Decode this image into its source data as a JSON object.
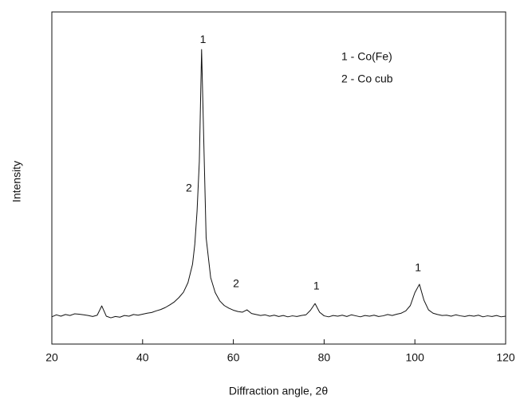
{
  "chart_data": {
    "type": "line",
    "xlabel": "Diffraction angle, 2θ",
    "ylabel": "Intensity",
    "x": [
      20,
      21,
      22,
      23,
      24,
      25,
      26,
      27,
      28,
      29,
      30,
      31,
      32,
      33,
      34,
      35,
      36,
      37,
      38,
      39,
      40,
      41,
      42,
      43,
      44,
      45,
      46,
      47,
      48,
      49,
      50,
      51,
      51.5,
      52,
      52.5,
      53,
      53.5,
      54,
      55,
      56,
      57,
      58,
      59,
      60,
      61,
      62,
      63,
      64,
      65,
      66,
      67,
      68,
      69,
      70,
      71,
      72,
      73,
      74,
      75,
      76,
      77,
      78,
      79,
      80,
      81,
      82,
      83,
      84,
      85,
      86,
      87,
      88,
      89,
      90,
      91,
      92,
      93,
      94,
      95,
      96,
      97,
      98,
      99,
      100,
      101,
      102,
      103,
      104,
      105,
      106,
      107,
      108,
      109,
      110,
      111,
      112,
      113,
      114,
      115,
      116,
      117,
      118,
      119,
      120
    ],
    "series": [
      {
        "color": "#111111",
        "values": [
          8.2,
          8.8,
          8.4,
          8.9,
          8.6,
          9.1,
          9.0,
          8.8,
          8.6,
          8.3,
          8.7,
          11.5,
          8.4,
          7.9,
          8.3,
          8.1,
          8.6,
          8.4,
          8.9,
          8.7,
          9.0,
          9.3,
          9.5,
          10.0,
          10.4,
          11.0,
          11.8,
          12.7,
          14.0,
          15.6,
          18.5,
          24,
          30,
          40,
          55,
          88.7,
          60,
          32,
          20,
          15.5,
          13,
          11.6,
          10.8,
          10.2,
          9.8,
          9.6,
          10.3,
          9.2,
          8.9,
          8.6,
          8.8,
          8.4,
          8.7,
          8.3,
          8.6,
          8.2,
          8.5,
          8.3,
          8.6,
          8.8,
          10.2,
          12.2,
          9.6,
          8.5,
          8.2,
          8.6,
          8.4,
          8.7,
          8.3,
          8.8,
          8.5,
          8.2,
          8.6,
          8.4,
          8.7,
          8.3,
          8.5,
          8.9,
          8.6,
          9.0,
          9.3,
          10.0,
          11.6,
          15.5,
          18.0,
          13.2,
          10.3,
          9.3,
          8.9,
          8.6,
          8.7,
          8.4,
          8.8,
          8.5,
          8.3,
          8.6,
          8.4,
          8.7,
          8.2,
          8.5,
          8.3,
          8.6,
          8.2,
          8.4
        ]
      }
    ],
    "xlim": [
      20,
      120
    ],
    "xticks": [
      20,
      40,
      60,
      80,
      100,
      120
    ],
    "ylim": [
      0,
      100
    ],
    "annotations": [
      {
        "text": "1",
        "x": 53.3,
        "y": 91.5
      },
      {
        "text": "2",
        "x": 50.2,
        "y": 46.8
      },
      {
        "text": "2",
        "x": 60.6,
        "y": 18
      },
      {
        "text": "1",
        "x": 78.3,
        "y": 17.3
      },
      {
        "text": "1",
        "x": 100.7,
        "y": 22.8
      }
    ],
    "legend_text": [
      "1 - Co(Fe)",
      "2 - Co cub"
    ]
  }
}
